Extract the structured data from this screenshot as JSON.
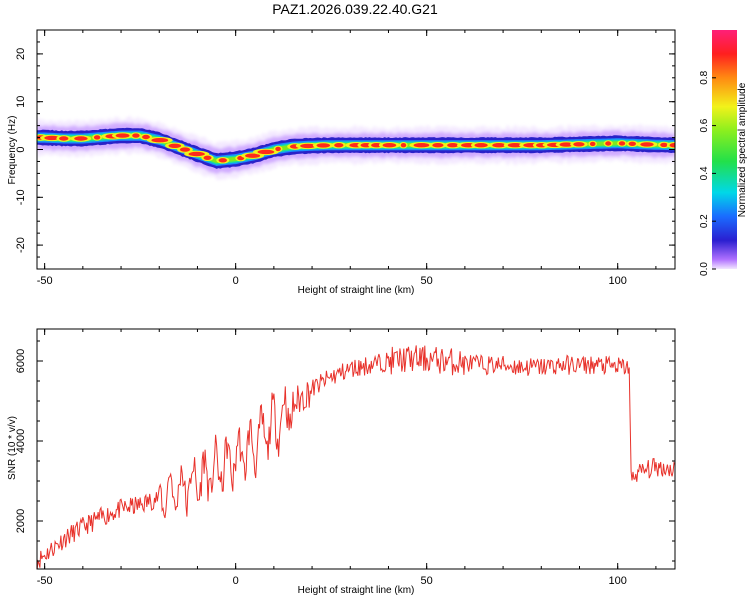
{
  "title": "PAZ1.2026.039.22.40.G21",
  "chart_data": [
    {
      "type": "heatmap",
      "id": "spectrogram",
      "xlabel": "Height of straight line (km)",
      "ylabel": "Frequency (Hz)",
      "xlim": [
        -52,
        115
      ],
      "ylim": [
        -25,
        25
      ],
      "xticks": [
        -50,
        0,
        50,
        100
      ],
      "yticks": [
        -20,
        -10,
        0,
        10,
        20
      ],
      "xtick_labels": [
        "-50",
        "0",
        "50",
        "100"
      ],
      "ytick_labels": [
        "-20",
        "-10",
        "0",
        "10",
        "20"
      ],
      "ridge": {
        "x": [
          -50,
          -45,
          -40,
          -35,
          -30,
          -25,
          -20,
          -15,
          -10,
          -5,
          0,
          5,
          10,
          15,
          20,
          25,
          30,
          40,
          50,
          60,
          70,
          80,
          90,
          100,
          110,
          115
        ],
        "freq": [
          2.5,
          2.3,
          2.3,
          2.6,
          2.9,
          2.9,
          2.0,
          0.5,
          -1.0,
          -2.4,
          -2.0,
          -1.2,
          0.0,
          0.6,
          0.8,
          0.9,
          0.9,
          0.9,
          0.9,
          0.9,
          0.9,
          0.9,
          1.1,
          1.3,
          1.0,
          0.9
        ]
      },
      "colorbar": {
        "label": "Normalized spectral amplitude",
        "ticks": [
          0.0,
          0.2,
          0.4,
          0.6,
          0.8
        ],
        "tick_labels": [
          "0.0",
          "0.2",
          "0.4",
          "0.6",
          "0.8"
        ],
        "range": [
          0,
          1
        ]
      }
    },
    {
      "type": "line",
      "id": "snr",
      "xlabel": "Height of straight line (km)",
      "ylabel": "SNR (10 * v/v)",
      "xlim": [
        -52,
        115
      ],
      "ylim": [
        800,
        6800
      ],
      "xticks": [
        -50,
        0,
        50,
        100
      ],
      "yticks": [
        2000,
        4000,
        6000
      ],
      "xtick_labels": [
        "-50",
        "0",
        "50",
        "100"
      ],
      "ytick_labels": [
        "2000",
        "4000",
        "6000"
      ],
      "color": "#e8322b",
      "series": [
        {
          "name": "SNR",
          "x": [
            -52,
            -50,
            -45,
            -40,
            -35,
            -30,
            -25,
            -20,
            -15,
            -10,
            -5,
            0,
            5,
            10,
            15,
            20,
            25,
            30,
            35,
            40,
            45,
            50,
            55,
            60,
            65,
            70,
            75,
            80,
            85,
            90,
            95,
            100,
            103,
            103.5,
            105,
            110,
            115
          ],
          "values": [
            1000,
            1150,
            1550,
            1850,
            2100,
            2300,
            2400,
            2600,
            2800,
            3000,
            3250,
            3550,
            3900,
            4400,
            4900,
            5300,
            5600,
            5800,
            5900,
            6000,
            6050,
            6050,
            6000,
            5950,
            5900,
            5900,
            5850,
            5850,
            5900,
            5900,
            5900,
            5850,
            5850,
            3050,
            3200,
            3350,
            3300
          ]
        }
      ]
    }
  ]
}
